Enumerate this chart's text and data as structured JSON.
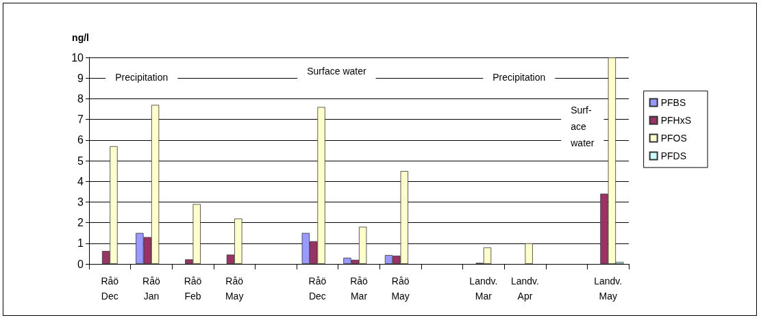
{
  "chart_data": {
    "type": "bar",
    "ylabel": "ng/l",
    "categories": [
      "Råö\nDec",
      "Råö\nJan",
      "Råö\nFeb",
      "Råö\nMay",
      null,
      "Råö\nDec",
      "Råö\nMar",
      "Råö\nMay",
      null,
      "Landv.\nMar",
      "Landv.\nApr",
      null,
      "Landv.\nMay"
    ],
    "series": [
      {
        "name": "PFBS",
        "color": "#9999ff",
        "values": [
          null,
          1.5,
          null,
          null,
          null,
          1.5,
          0.3,
          0.43,
          null,
          null,
          null,
          null,
          null
        ]
      },
      {
        "name": "PFHxS",
        "color": "#993366",
        "values": [
          0.63,
          1.3,
          0.22,
          0.45,
          null,
          1.1,
          0.2,
          0.4,
          null,
          0.05,
          null,
          null,
          3.4
        ]
      },
      {
        "name": "PFOS",
        "color": "#ffffcc",
        "values": [
          5.7,
          7.7,
          2.9,
          2.2,
          null,
          7.6,
          1.8,
          4.5,
          null,
          0.8,
          1.0,
          null,
          10
        ]
      },
      {
        "name": "PFDS",
        "color": "#ccffff",
        "values": [
          null,
          null,
          null,
          null,
          null,
          null,
          null,
          null,
          null,
          null,
          null,
          null,
          0.1
        ]
      }
    ],
    "ylim": [
      0,
      10
    ],
    "yticks": [
      0,
      1,
      2,
      3,
      4,
      5,
      6,
      7,
      8,
      9,
      10
    ],
    "grid": "y",
    "legend": "right",
    "annotations": [
      "Precipitation",
      "Surface water",
      "Precipitation",
      "Surf-\nace\nwater"
    ]
  }
}
